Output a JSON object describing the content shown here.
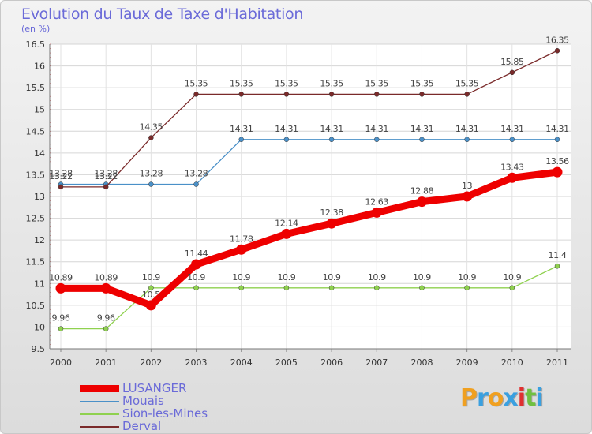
{
  "chart_data": {
    "type": "line",
    "title": "Evolution du Taux de Taxe d'Habitation",
    "subtitle": "(en %)",
    "x": [
      "2000",
      "2001",
      "2002",
      "2003",
      "2004",
      "2005",
      "2006",
      "2007",
      "2008",
      "2009",
      "2010",
      "2011"
    ],
    "ylim": [
      9.5,
      16.5
    ],
    "yticks": [
      "9.5",
      "10",
      "10.5",
      "11",
      "11.5",
      "12",
      "12.5",
      "13",
      "13.5",
      "14",
      "14.5",
      "15",
      "15.5",
      "16",
      "16.5"
    ],
    "grid": true,
    "legend_position": "bottom-left",
    "series": [
      {
        "name": "LUSANGER",
        "color": "#ee0000",
        "emphasis": "thick",
        "values": [
          10.89,
          10.89,
          10.5,
          11.44,
          11.78,
          12.14,
          12.38,
          12.63,
          12.88,
          13,
          13.43,
          13.56
        ],
        "labels": [
          "10.89",
          "10.89",
          "10.5",
          "11.44",
          "11.78",
          "12.14",
          "12.38",
          "12.63",
          "12.88",
          "13",
          "13.43",
          "13.56"
        ]
      },
      {
        "name": "Mouais",
        "color": "#4a90c8",
        "values": [
          13.28,
          13.28,
          13.28,
          13.28,
          14.31,
          14.31,
          14.31,
          14.31,
          14.31,
          14.31,
          14.31,
          14.31
        ],
        "labels": [
          "13.28",
          "13.28",
          "13.28",
          "13.28",
          "14.31",
          "14.31",
          "14.31",
          "14.31",
          "14.31",
          "14.31",
          "14.31",
          "14.31"
        ]
      },
      {
        "name": "Sion-les-Mines",
        "color": "#8fd14f",
        "values": [
          9.96,
          9.96,
          10.9,
          10.9,
          10.9,
          10.9,
          10.9,
          10.9,
          10.9,
          10.9,
          10.9,
          11.4
        ],
        "labels": [
          "9.96",
          "9.96",
          "10.9",
          "10.9",
          "10.9",
          "10.9",
          "10.9",
          "10.9",
          "10.9",
          "10.9",
          "10.9",
          "11.4"
        ]
      },
      {
        "name": "Derval",
        "color": "#7a2a2a",
        "values": [
          13.22,
          13.22,
          14.35,
          15.35,
          15.35,
          15.35,
          15.35,
          15.35,
          15.35,
          15.35,
          15.85,
          16.35
        ],
        "labels": [
          "13.22",
          "13.22",
          "14.35",
          "15.35",
          "15.35",
          "15.35",
          "15.35",
          "15.35",
          "15.35",
          "15.35",
          "15.85",
          "16.35"
        ]
      }
    ]
  },
  "brand": {
    "letters": [
      "P",
      "r",
      "o",
      "x",
      "i",
      "t",
      "i"
    ],
    "colors": [
      "#f0a020",
      "#3aa0e0",
      "#f0a020",
      "#3aa0e0",
      "#e03030",
      "#70c040",
      "#3aa0e0"
    ]
  }
}
